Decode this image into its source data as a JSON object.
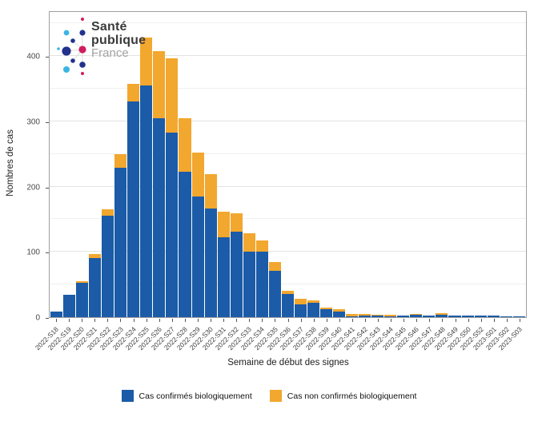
{
  "logo": {
    "word1": "Santé",
    "word2": "publique",
    "word3": "France"
  },
  "chart_data": {
    "type": "bar",
    "stacked": true,
    "title": "",
    "xlabel": "Semaine de début des signes",
    "ylabel": "Nombres de cas",
    "ylim": [
      0,
      470
    ],
    "yticks": [
      0,
      100,
      200,
      300,
      400
    ],
    "grid": "horizontal major every 100, minor every 50",
    "legend_position": "bottom-center",
    "categories": [
      "2022-S18",
      "2022-S19",
      "2022-S20",
      "2022-S21",
      "2022-S22",
      "2022-S23",
      "2022-S24",
      "2022-S25",
      "2022-S26",
      "2022-S27",
      "2022-S28",
      "2022-S29",
      "2022-S30",
      "2022-S31",
      "2022-S32",
      "2022-S33",
      "2022-S34",
      "2022-S35",
      "2022-S36",
      "2022-S37",
      "2022-S38",
      "2022-S39",
      "2022-S40",
      "2022-S41",
      "2022-S42",
      "2022-S43",
      "2022-S44",
      "2022-S45",
      "2022-S46",
      "2022-S47",
      "2022-S48",
      "2022-S49",
      "2022-S50",
      "2022-S52",
      "2023-S01",
      "2023-S02",
      "2023-S03"
    ],
    "series": [
      {
        "name": "Cas confirmés biologiquement",
        "color": "#1b5ba7",
        "values": [
          8,
          34,
          53,
          91,
          156,
          229,
          330,
          355,
          305,
          283,
          223,
          185,
          167,
          123,
          131,
          100,
          100,
          71,
          35,
          20,
          22,
          12,
          8,
          1,
          2,
          3,
          1,
          2,
          4,
          2,
          4,
          2,
          2,
          2,
          2,
          1,
          1
        ]
      },
      {
        "name": "Cas non confirmés biologiquement",
        "color": "#f2a72e",
        "values": [
          0,
          0,
          2,
          6,
          9,
          21,
          27,
          73,
          103,
          114,
          82,
          67,
          52,
          39,
          28,
          29,
          18,
          13,
          6,
          8,
          4,
          3,
          4,
          4,
          3,
          1,
          3,
          0,
          1,
          0,
          2,
          0,
          0,
          0,
          0,
          0,
          0
        ]
      }
    ]
  },
  "colors": {
    "confirmed_blue": "#1b5ba7",
    "unconfirmed_orange": "#f2a72e",
    "grid_major": "#e3e3e3",
    "grid_minor": "#f0f0f0",
    "panel_border": "#9f9f9f",
    "logo_navy": "#22318c",
    "logo_cyan": "#3ab5e4",
    "logo_pink": "#d01d60"
  }
}
